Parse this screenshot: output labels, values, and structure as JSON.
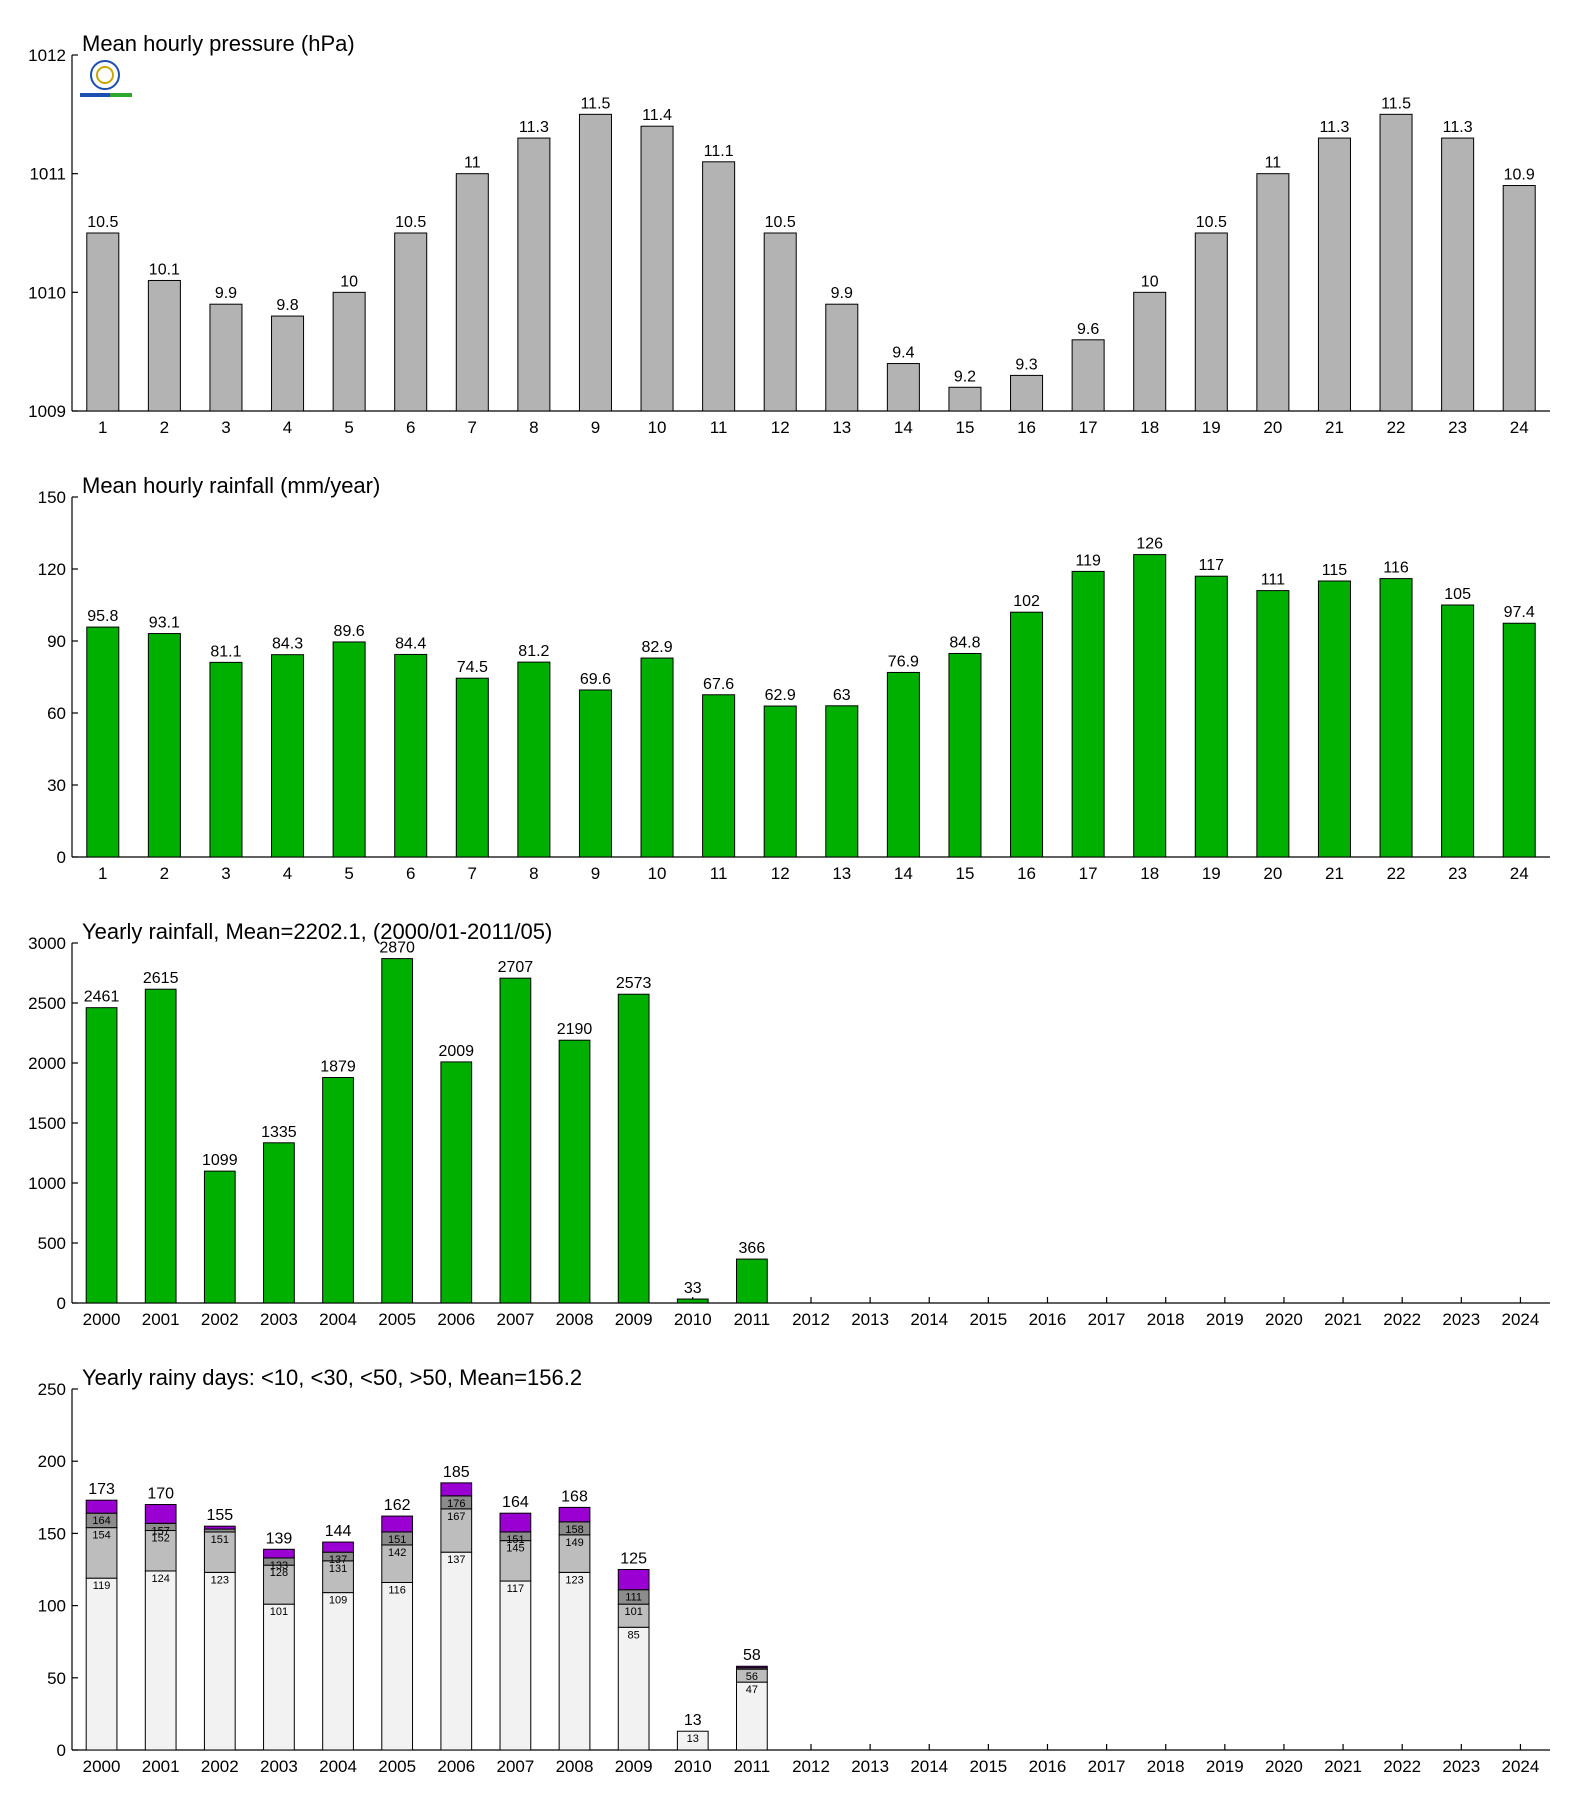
{
  "chart_data": [
    {
      "type": "bar",
      "title": "Mean hourly pressure (hPa)",
      "categories": [
        "1",
        "2",
        "3",
        "4",
        "5",
        "6",
        "7",
        "8",
        "9",
        "10",
        "11",
        "12",
        "13",
        "14",
        "15",
        "16",
        "17",
        "18",
        "19",
        "20",
        "21",
        "22",
        "23",
        "24"
      ],
      "values": [
        1010.5,
        1010.1,
        1009.9,
        1009.8,
        1010.0,
        1010.5,
        1011.0,
        1011.3,
        1011.5,
        1011.4,
        1011.1,
        1010.5,
        1009.9,
        1009.4,
        1009.2,
        1009.3,
        1009.6,
        1010.0,
        1010.5,
        1011.0,
        1011.3,
        1011.5,
        1011.3,
        1010.9
      ],
      "value_labels": [
        "10.5",
        "10.1",
        "9.9",
        "9.8",
        "10",
        "10.5",
        "11",
        "11.3",
        "11.5",
        "11.4",
        "11.1",
        "10.5",
        "9.9",
        "9.4",
        "9.2",
        "9.3",
        "9.6",
        "10",
        "10.5",
        "11",
        "11.3",
        "11.5",
        "11.3",
        "10.9"
      ],
      "ylim": [
        1009,
        1012
      ],
      "yticks": [
        1009,
        1010,
        1011,
        1012
      ],
      "color": "#b3b3b3",
      "grid": false,
      "legend": "none"
    },
    {
      "type": "bar",
      "title": "Mean hourly rainfall (mm/year)",
      "categories": [
        "1",
        "2",
        "3",
        "4",
        "5",
        "6",
        "7",
        "8",
        "9",
        "10",
        "11",
        "12",
        "13",
        "14",
        "15",
        "16",
        "17",
        "18",
        "19",
        "20",
        "21",
        "22",
        "23",
        "24"
      ],
      "values": [
        95.8,
        93.1,
        81.1,
        84.3,
        89.6,
        84.4,
        74.5,
        81.2,
        69.6,
        82.9,
        67.6,
        62.9,
        63,
        76.9,
        84.8,
        102,
        119,
        126,
        117,
        111,
        115,
        116,
        105,
        97.4
      ],
      "value_labels": [
        "95.8",
        "93.1",
        "81.1",
        "84.3",
        "89.6",
        "84.4",
        "74.5",
        "81.2",
        "69.6",
        "82.9",
        "67.6",
        "62.9",
        "63",
        "76.9",
        "84.8",
        "102",
        "119",
        "126",
        "117",
        "111",
        "115",
        "116",
        "105",
        "97.4"
      ],
      "ylim": [
        0,
        150
      ],
      "yticks": [
        0,
        30,
        60,
        90,
        120,
        150
      ],
      "color": "#00b000",
      "grid": false,
      "legend": "none"
    },
    {
      "type": "bar",
      "title": "Yearly rainfall, Mean=2202.1, (2000/01-2011/05)",
      "categories": [
        "2000",
        "2001",
        "2002",
        "2003",
        "2004",
        "2005",
        "2006",
        "2007",
        "2008",
        "2009",
        "2010",
        "2011",
        "2012",
        "2013",
        "2014",
        "2015",
        "2016",
        "2017",
        "2018",
        "2019",
        "2020",
        "2021",
        "2022",
        "2023",
        "2024"
      ],
      "values": [
        2461,
        2615,
        1099,
        1335,
        1879,
        2870,
        2009,
        2707,
        2190,
        2573,
        33,
        366,
        null,
        null,
        null,
        null,
        null,
        null,
        null,
        null,
        null,
        null,
        null,
        null,
        null
      ],
      "value_labels": [
        "2461",
        "2615",
        "1099",
        "1335",
        "1879",
        "2870",
        "2009",
        "2707",
        "2190",
        "2573",
        "33",
        "366",
        "",
        "",
        "",
        "",
        "",
        "",
        "",
        "",
        "",
        "",
        "",
        "",
        ""
      ],
      "ylim": [
        0,
        3000
      ],
      "yticks": [
        0,
        500,
        1000,
        1500,
        2000,
        2500,
        3000
      ],
      "color": "#00b000",
      "grid": false,
      "legend": "none"
    },
    {
      "type": "bar",
      "stacked": true,
      "title": "Yearly rainy days: <10, <30, <50, >50, Mean=156.2",
      "categories": [
        "2000",
        "2001",
        "2002",
        "2003",
        "2004",
        "2005",
        "2006",
        "2007",
        "2008",
        "2009",
        "2010",
        "2011",
        "2012",
        "2013",
        "2014",
        "2015",
        "2016",
        "2017",
        "2018",
        "2019",
        "2020",
        "2021",
        "2022",
        "2023",
        "2024"
      ],
      "cumulative": [
        [
          119,
          154,
          164,
          173
        ],
        [
          124,
          152,
          157,
          170
        ],
        [
          123,
          151,
          153,
          155
        ],
        [
          101,
          128,
          133,
          139
        ],
        [
          109,
          131,
          137,
          144
        ],
        [
          116,
          142,
          151,
          162
        ],
        [
          137,
          167,
          176,
          185
        ],
        [
          117,
          145,
          151,
          164
        ],
        [
          123,
          149,
          158,
          168
        ],
        [
          85,
          101,
          111,
          125
        ],
        [
          13,
          13,
          13,
          13
        ],
        [
          47,
          56,
          57,
          58
        ],
        null,
        null,
        null,
        null,
        null,
        null,
        null,
        null,
        null,
        null,
        null,
        null,
        null
      ],
      "segment_labels": [
        [
          "119",
          "154",
          "164"
        ],
        [
          "124",
          "152",
          "157"
        ],
        [
          "123",
          "151",
          ""
        ],
        [
          "101",
          "128",
          "133"
        ],
        [
          "109",
          "131",
          "137"
        ],
        [
          "116",
          "142",
          "151"
        ],
        [
          "137",
          "167",
          "176"
        ],
        [
          "117",
          "145",
          "151"
        ],
        [
          "123",
          "149",
          "158"
        ],
        [
          "85",
          "101",
          "111"
        ],
        [
          "13",
          "",
          ""
        ],
        [
          "47",
          "56",
          ""
        ],
        null,
        null,
        null,
        null,
        null,
        null,
        null,
        null,
        null,
        null,
        null,
        null,
        null
      ],
      "totals": [
        "173",
        "170",
        "155",
        "139",
        "144",
        "162",
        "185",
        "164",
        "168",
        "125",
        "13",
        "58",
        "",
        "",
        "",
        "",
        "",
        "",
        "",
        "",
        "",
        "",
        "",
        "",
        ""
      ],
      "segment_colors": [
        "#f2f2f2",
        "#bdbdbd",
        "#8c8c8c",
        "#9b00d2"
      ],
      "ylim": [
        0,
        250
      ],
      "yticks": [
        0,
        50,
        100,
        150,
        200,
        250
      ],
      "grid": false,
      "legend": "none"
    }
  ]
}
